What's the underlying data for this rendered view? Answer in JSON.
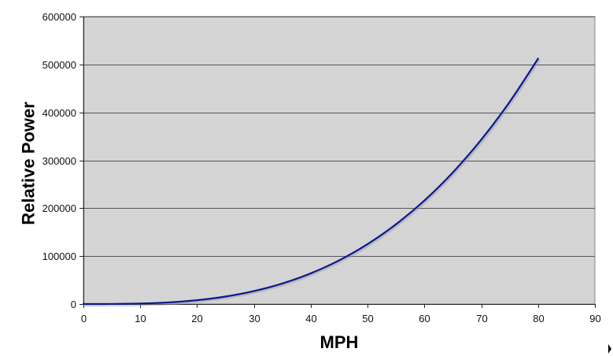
{
  "chart_data": {
    "type": "line",
    "title": "",
    "xlabel": "MPH",
    "ylabel": "Relative Power",
    "xlim": [
      0,
      90
    ],
    "ylim": [
      0,
      600000
    ],
    "x_ticks": [
      0,
      10,
      20,
      30,
      40,
      50,
      60,
      70,
      80,
      90
    ],
    "y_ticks": [
      0,
      100000,
      200000,
      300000,
      400000,
      500000,
      600000
    ],
    "grid": "horizontal",
    "legend": "none",
    "background_color": "#d4d4d4",
    "gridline_color": "#555555",
    "series": [
      {
        "color": "#0a1a8a",
        "x": [
          0,
          5,
          10,
          15,
          20,
          25,
          30,
          35,
          40,
          45,
          50,
          55,
          60,
          65,
          70,
          75,
          80
        ],
        "values": [
          0,
          125,
          1000,
          3375,
          8000,
          15625,
          27000,
          42875,
          64000,
          91125,
          125000,
          166375,
          216000,
          274625,
          343000,
          421875,
          512000
        ]
      }
    ]
  }
}
